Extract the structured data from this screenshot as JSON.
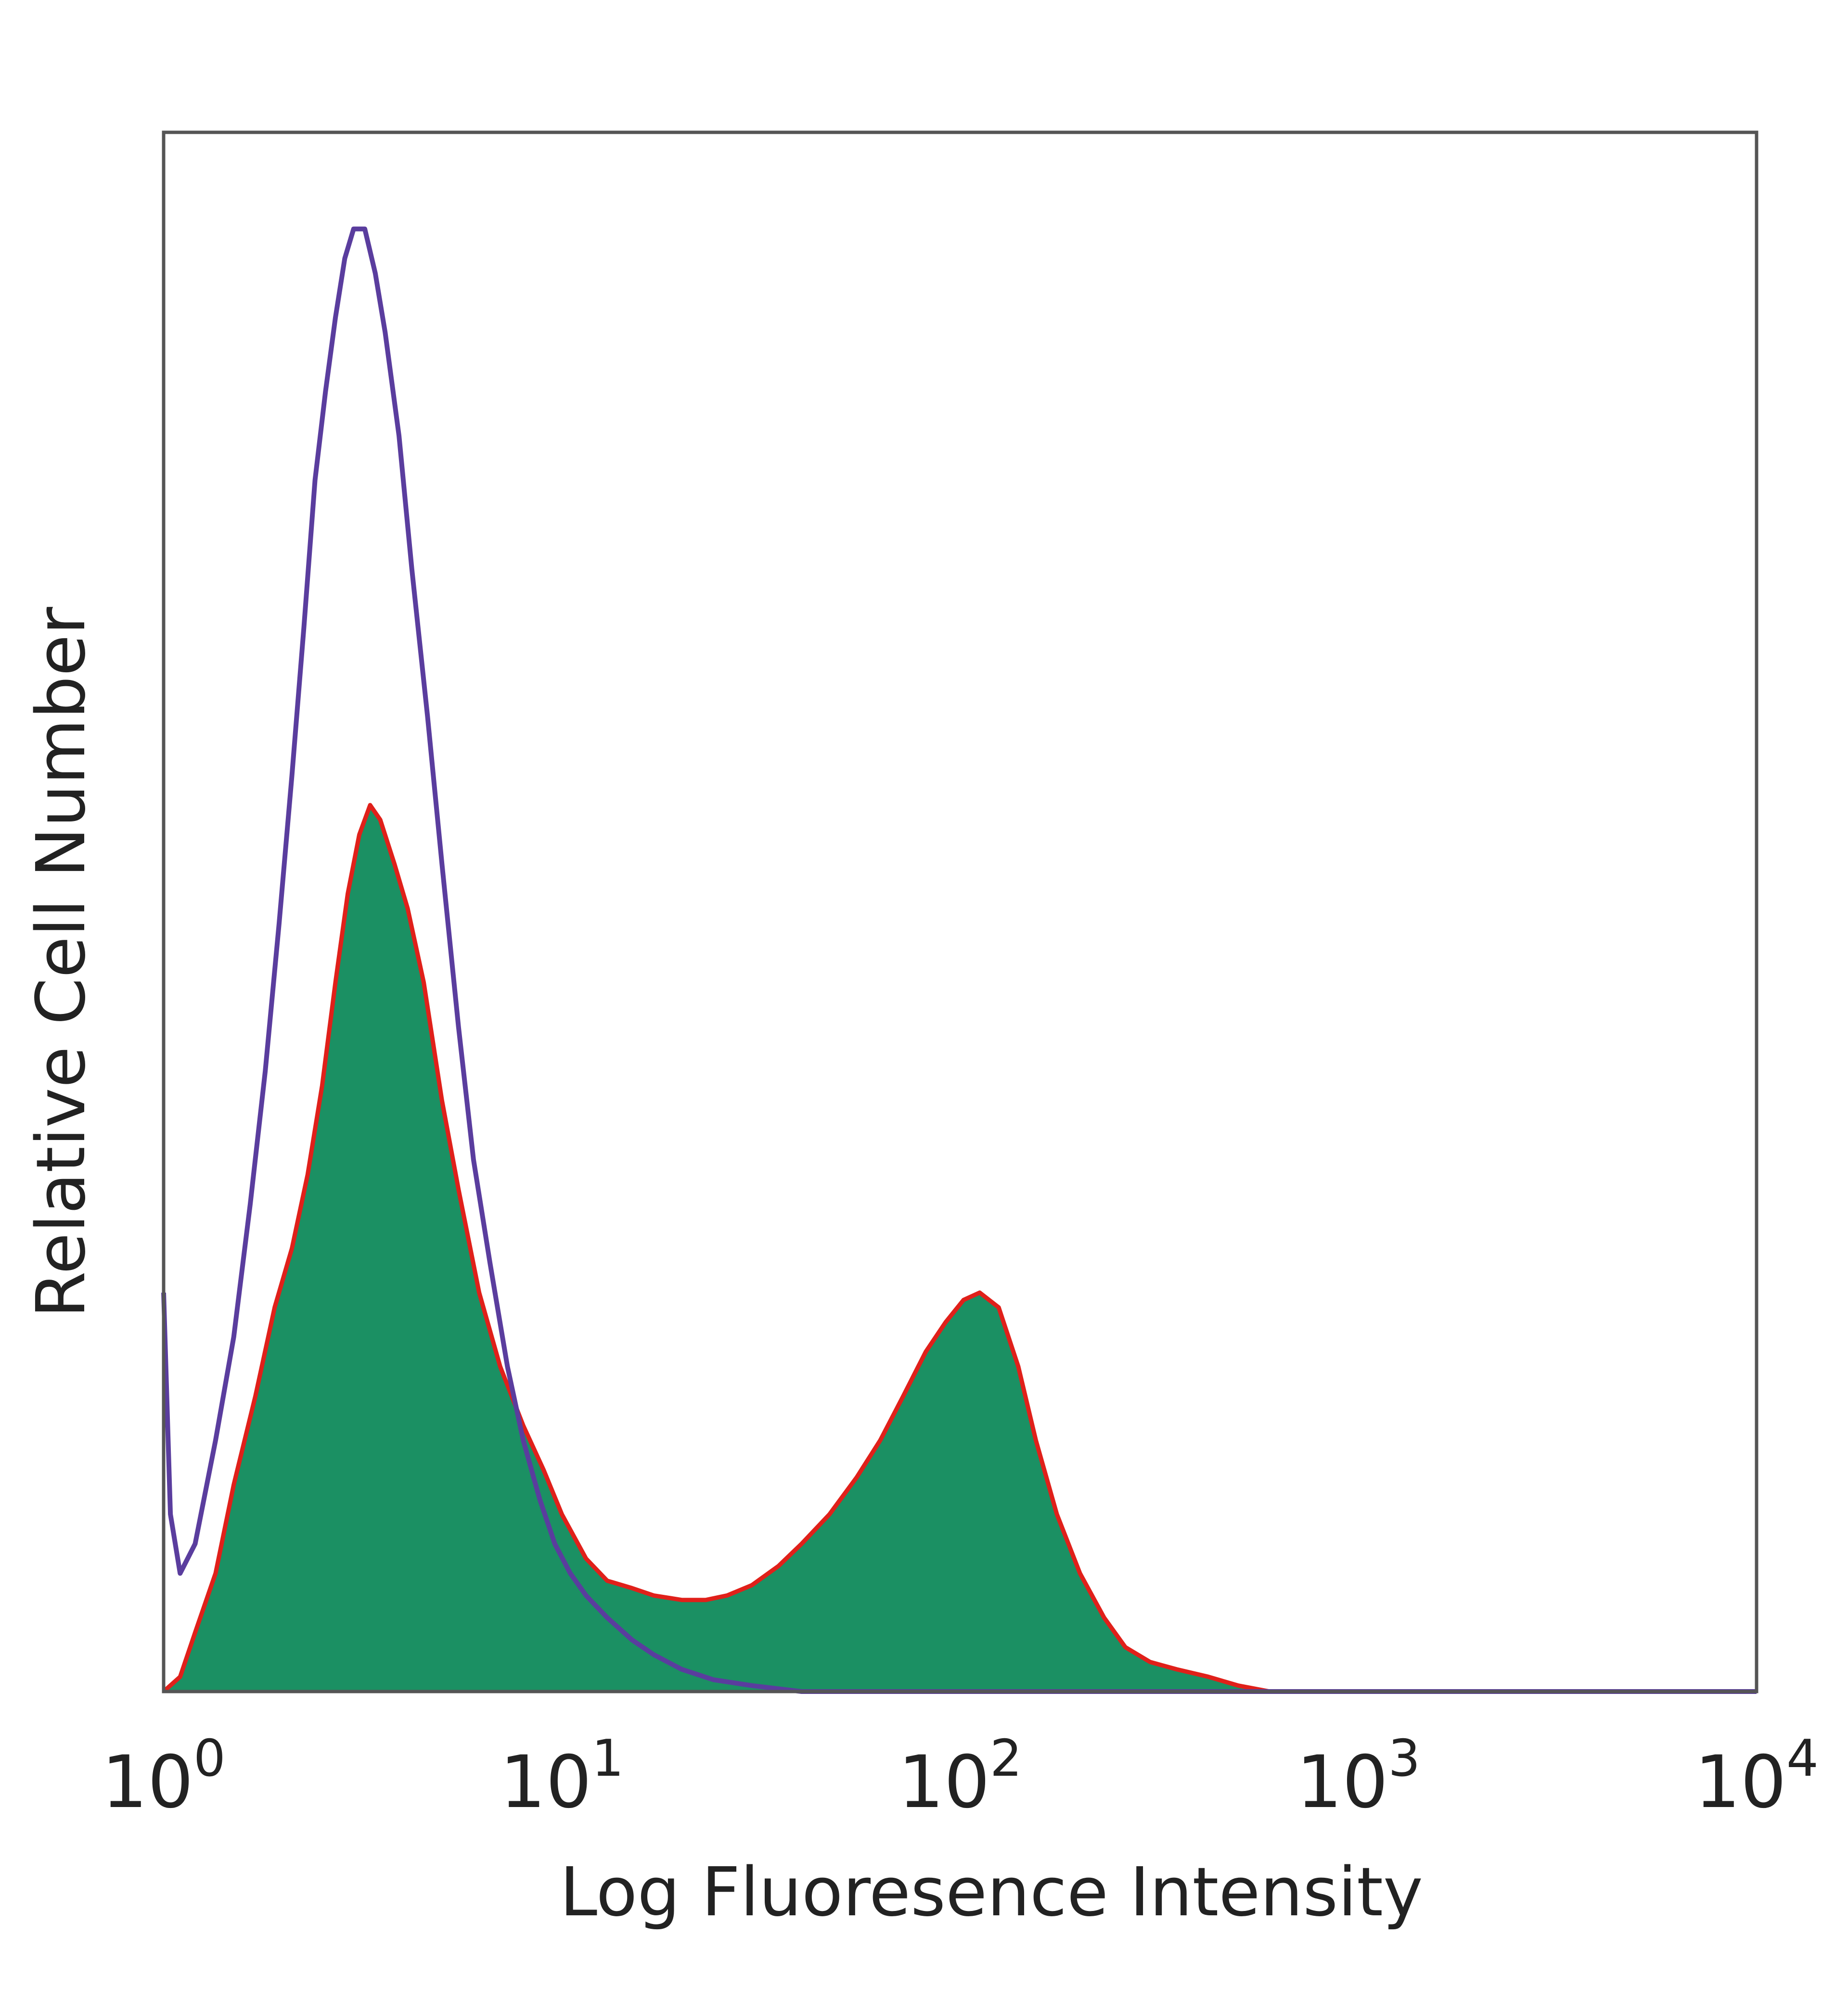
{
  "chart_data": {
    "type": "area",
    "title": "",
    "xlabel": "Log Fluoresence Intensity",
    "ylabel": "Relative Cell Number",
    "x_scale": "log",
    "xlim": [
      1,
      10000
    ],
    "ylim": [
      0,
      1
    ],
    "x_ticks": [
      {
        "base": "10",
        "exp": "0",
        "value": 1
      },
      {
        "base": "10",
        "exp": "1",
        "value": 10
      },
      {
        "base": "10",
        "exp": "2",
        "value": 100
      },
      {
        "base": "10",
        "exp": "3",
        "value": 1000
      },
      {
        "base": "10",
        "exp": "4",
        "value": 10000
      }
    ],
    "grid": false,
    "legend": "none",
    "series": [
      {
        "style": "filled",
        "fill_color": "#1b9063",
        "edge_color": "#e0201a",
        "points": [
          [
            1.0,
            0.0
          ],
          [
            1.1,
            0.01
          ],
          [
            1.2,
            0.04
          ],
          [
            1.35,
            0.08
          ],
          [
            1.5,
            0.14
          ],
          [
            1.7,
            0.2
          ],
          [
            1.9,
            0.26
          ],
          [
            2.1,
            0.3
          ],
          [
            2.3,
            0.35
          ],
          [
            2.5,
            0.41
          ],
          [
            2.7,
            0.48
          ],
          [
            2.9,
            0.54
          ],
          [
            3.1,
            0.58
          ],
          [
            3.3,
            0.6
          ],
          [
            3.5,
            0.59
          ],
          [
            3.8,
            0.56
          ],
          [
            4.1,
            0.53
          ],
          [
            4.5,
            0.48
          ],
          [
            5.0,
            0.4
          ],
          [
            5.5,
            0.34
          ],
          [
            6.2,
            0.27
          ],
          [
            7.0,
            0.22
          ],
          [
            8.0,
            0.18
          ],
          [
            9.0,
            0.15
          ],
          [
            10.0,
            0.12
          ],
          [
            11.5,
            0.09
          ],
          [
            13.0,
            0.075
          ],
          [
            15.0,
            0.07
          ],
          [
            17.0,
            0.065
          ],
          [
            20.0,
            0.062
          ],
          [
            23.0,
            0.062
          ],
          [
            26.0,
            0.065
          ],
          [
            30.0,
            0.072
          ],
          [
            35.0,
            0.085
          ],
          [
            40.0,
            0.1
          ],
          [
            47.0,
            0.12
          ],
          [
            55.0,
            0.145
          ],
          [
            63.0,
            0.17
          ],
          [
            72.0,
            0.2
          ],
          [
            82.0,
            0.23
          ],
          [
            92.0,
            0.25
          ],
          [
            102.0,
            0.265
          ],
          [
            112.0,
            0.27
          ],
          [
            125.0,
            0.26
          ],
          [
            140.0,
            0.22
          ],
          [
            155.0,
            0.17
          ],
          [
            175.0,
            0.12
          ],
          [
            200.0,
            0.08
          ],
          [
            230.0,
            0.05
          ],
          [
            260.0,
            0.03
          ],
          [
            300.0,
            0.02
          ],
          [
            350.0,
            0.015
          ],
          [
            420.0,
            0.01
          ],
          [
            500.0,
            0.004
          ],
          [
            600.0,
            0.0
          ],
          [
            1000.0,
            0.0
          ],
          [
            10000.0,
            0.0
          ]
        ]
      },
      {
        "style": "line",
        "line_color": "#5a3d9e",
        "points": [
          [
            1.0,
            0.27
          ],
          [
            1.04,
            0.12
          ],
          [
            1.1,
            0.08
          ],
          [
            1.2,
            0.1
          ],
          [
            1.35,
            0.17
          ],
          [
            1.5,
            0.24
          ],
          [
            1.65,
            0.33
          ],
          [
            1.8,
            0.42
          ],
          [
            1.95,
            0.52
          ],
          [
            2.1,
            0.62
          ],
          [
            2.25,
            0.72
          ],
          [
            2.4,
            0.82
          ],
          [
            2.55,
            0.88
          ],
          [
            2.7,
            0.93
          ],
          [
            2.85,
            0.97
          ],
          [
            3.0,
            0.99
          ],
          [
            3.2,
            0.99
          ],
          [
            3.4,
            0.96
          ],
          [
            3.6,
            0.92
          ],
          [
            3.9,
            0.85
          ],
          [
            4.2,
            0.76
          ],
          [
            4.6,
            0.66
          ],
          [
            5.0,
            0.56
          ],
          [
            5.5,
            0.45
          ],
          [
            6.0,
            0.36
          ],
          [
            6.6,
            0.29
          ],
          [
            7.3,
            0.22
          ],
          [
            8.0,
            0.17
          ],
          [
            8.8,
            0.13
          ],
          [
            9.6,
            0.1
          ],
          [
            10.5,
            0.08
          ],
          [
            11.5,
            0.065
          ],
          [
            13.0,
            0.05
          ],
          [
            15.0,
            0.035
          ],
          [
            17.0,
            0.025
          ],
          [
            20.0,
            0.015
          ],
          [
            24.0,
            0.008
          ],
          [
            30.0,
            0.004
          ],
          [
            40.0,
            0.0
          ],
          [
            10000.0,
            0.0
          ]
        ]
      }
    ]
  }
}
